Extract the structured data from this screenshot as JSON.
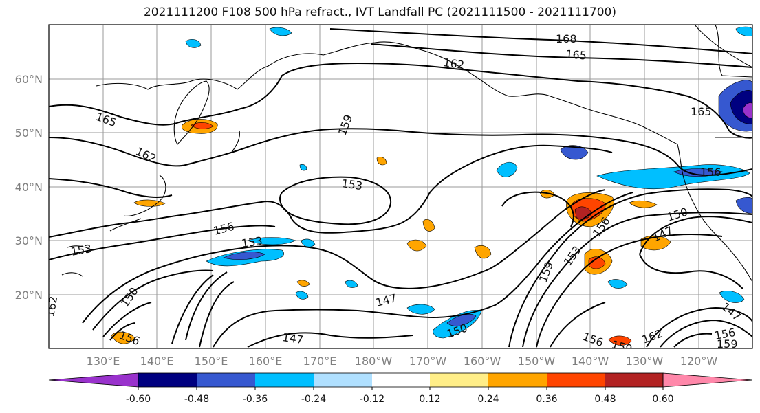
{
  "title": "2021111200 F108 500 hPa refract., IVT Landfall PC (2021111500 - 2021111700)",
  "map": {
    "lon_ticks": [
      "130°E",
      "140°E",
      "150°E",
      "160°E",
      "170°E",
      "180°W",
      "170°W",
      "160°W",
      "150°W",
      "140°W",
      "130°W",
      "120°W"
    ],
    "lat_ticks": [
      "60°N",
      "50°N",
      "40°N",
      "30°N",
      "20°N"
    ],
    "contour_labels": [
      "168",
      "165",
      "162",
      "159",
      "165",
      "165",
      "162",
      "153",
      "156",
      "153",
      "153",
      "156",
      "150",
      "153",
      "156",
      "159",
      "147",
      "147",
      "150",
      "147",
      "150",
      "156",
      "159",
      "162",
      "156",
      "159",
      "147",
      "156",
      "162"
    ]
  },
  "colorbar": {
    "colors": [
      "#9932cc",
      "#000080",
      "#3658d0",
      "#00bfff",
      "#b0e0ff",
      "#ffffff",
      "#ffee88",
      "#ffa500",
      "#ff4500",
      "#b22222",
      "#ff88aa"
    ],
    "tick_labels": [
      "-0.60",
      "-0.48",
      "-0.36",
      "-0.24",
      "-0.12",
      "0.12",
      "0.24",
      "0.36",
      "0.48",
      "0.60"
    ]
  }
}
